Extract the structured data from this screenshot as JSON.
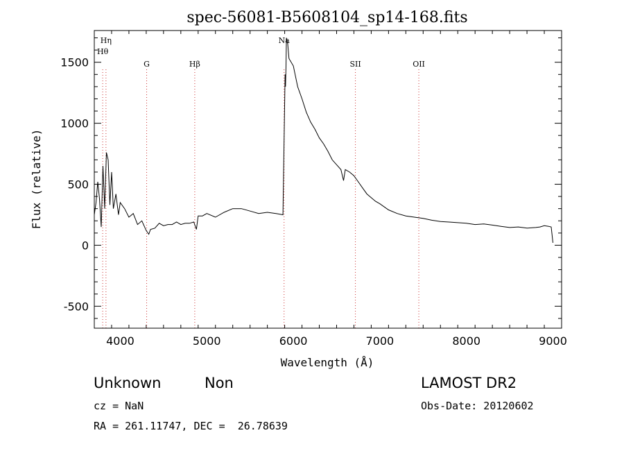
{
  "title": "spec-56081-B5608104_sp14-168.fits",
  "info": {
    "object_class": "Unknown",
    "object_subclass": "Non",
    "survey": "LAMOST DR2",
    "cz": "cz = NaN",
    "obs_date": "Obs-Date: 20120602",
    "radec": "RA = 261.11747, DEC =  26.78639"
  },
  "chart_data": {
    "type": "line",
    "title": "spec-56081-B5608104_sp14-168.fits",
    "xlabel": "Wavelength (Å)",
    "ylabel": "Flux (relative)",
    "xlim": [
      3700,
      9100
    ],
    "ylim": [
      -680,
      1760
    ],
    "xticks": [
      4000,
      5000,
      6000,
      7000,
      8000,
      9000
    ],
    "yticks": [
      -500,
      0,
      500,
      1000,
      1500
    ],
    "grid": false,
    "line_color": "#000000",
    "marker_color": "#cc3333",
    "lines": [
      {
        "label": "Hη",
        "x": 3835
      },
      {
        "label": "Hθ",
        "x": 3797
      },
      {
        "label": "G",
        "x": 4305
      },
      {
        "label": "Hβ",
        "x": 4861
      },
      {
        "label": "Na",
        "x": 5893
      },
      {
        "label": "SII",
        "x": 6717
      },
      {
        "label": "OII",
        "x": 7450
      }
    ],
    "series": [
      {
        "x": [
          3700,
          3720,
          3740,
          3760,
          3780,
          3800,
          3820,
          3840,
          3860,
          3880,
          3900,
          3920,
          3950,
          3980,
          4000,
          4050,
          4100,
          4150,
          4200,
          4250,
          4300,
          4330,
          4350,
          4400,
          4450,
          4500,
          4550,
          4600,
          4650,
          4700,
          4750,
          4800,
          4850,
          4880,
          4900,
          4950,
          5000,
          5100,
          5200,
          5300,
          5400,
          5500,
          5600,
          5700,
          5800,
          5880,
          5905,
          5910,
          5915,
          5920,
          5935,
          5950,
          6000,
          6050,
          6100,
          6150,
          6200,
          6250,
          6300,
          6350,
          6400,
          6450,
          6500,
          6550,
          6580,
          6600,
          6650,
          6700,
          6750,
          6800,
          6850,
          6900,
          6950,
          7000,
          7100,
          7200,
          7300,
          7400,
          7500,
          7600,
          7700,
          7800,
          7900,
          8000,
          8100,
          8200,
          8300,
          8400,
          8500,
          8600,
          8700,
          8800,
          8850,
          8900,
          8950,
          8980,
          9000
        ],
        "y": [
          250,
          350,
          520,
          380,
          150,
          650,
          300,
          760,
          700,
          330,
          600,
          300,
          420,
          250,
          350,
          300,
          230,
          260,
          170,
          200,
          120,
          90,
          130,
          140,
          180,
          160,
          170,
          170,
          190,
          170,
          180,
          180,
          190,
          130,
          240,
          240,
          260,
          230,
          270,
          300,
          300,
          280,
          260,
          270,
          260,
          250,
          1400,
          1300,
          1460,
          1700,
          1650,
          1530,
          1470,
          1300,
          1200,
          1090,
          1010,
          950,
          880,
          830,
          770,
          700,
          660,
          620,
          530,
          620,
          600,
          570,
          520,
          470,
          420,
          390,
          360,
          340,
          290,
          260,
          240,
          230,
          220,
          205,
          195,
          190,
          185,
          180,
          170,
          175,
          165,
          155,
          145,
          150,
          140,
          145,
          150,
          160,
          155,
          150,
          20
        ]
      }
    ]
  }
}
